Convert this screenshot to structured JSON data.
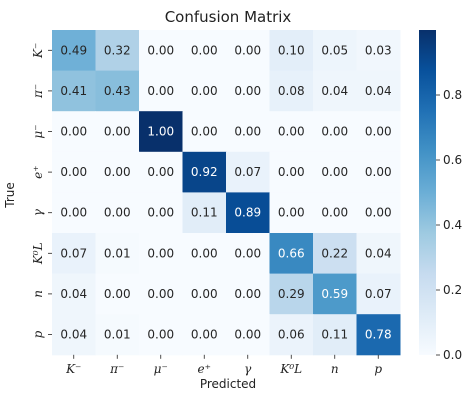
{
  "chart_data": {
    "type": "heatmap",
    "title": "Confusion Matrix",
    "xlabel": "Predicted",
    "ylabel": "True",
    "x_categories": [
      "K⁻",
      "π⁻",
      "μ⁻",
      "e⁺",
      "γ",
      "K⁰L",
      "n",
      "p"
    ],
    "y_categories": [
      "K⁻",
      "π⁻",
      "μ⁻",
      "e⁺",
      "γ",
      "K⁰L",
      "n",
      "p"
    ],
    "values": [
      [
        0.49,
        0.32,
        0.0,
        0.0,
        0.0,
        0.1,
        0.05,
        0.03
      ],
      [
        0.41,
        0.43,
        0.0,
        0.0,
        0.0,
        0.08,
        0.04,
        0.04
      ],
      [
        0.0,
        0.0,
        1.0,
        0.0,
        0.0,
        0.0,
        0.0,
        0.0
      ],
      [
        0.0,
        0.0,
        0.0,
        0.92,
        0.07,
        0.0,
        0.0,
        0.0
      ],
      [
        0.0,
        0.0,
        0.0,
        0.11,
        0.89,
        0.0,
        0.0,
        0.0
      ],
      [
        0.07,
        0.01,
        0.0,
        0.0,
        0.0,
        0.66,
        0.22,
        0.04
      ],
      [
        0.04,
        0.0,
        0.0,
        0.0,
        0.0,
        0.29,
        0.59,
        0.07
      ],
      [
        0.04,
        0.01,
        0.0,
        0.0,
        0.0,
        0.06,
        0.11,
        0.78
      ]
    ],
    "colorbar": {
      "colormap": "Blues",
      "range": [
        0.0,
        1.0
      ],
      "ticks": [
        "0.0",
        "0.2",
        "0.4",
        "0.6",
        "0.8"
      ]
    },
    "grid": false
  }
}
